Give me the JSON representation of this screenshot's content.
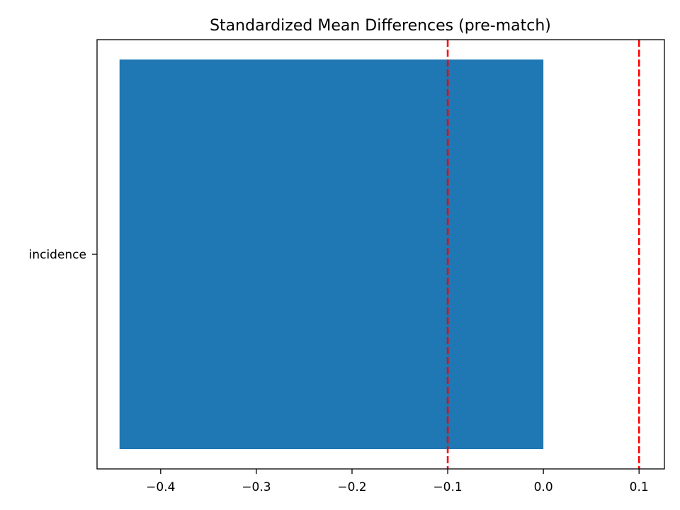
{
  "chart_data": {
    "type": "bar",
    "orientation": "horizontal",
    "title": "Standardized Mean Differences (pre-match)",
    "xlabel": "",
    "ylabel": "",
    "categories": [
      "incidence"
    ],
    "values": [
      -0.443
    ],
    "xlim": [
      -0.4665,
      0.1265
    ],
    "xticks": [
      -0.4,
      -0.3,
      -0.2,
      -0.1,
      0.0,
      0.1
    ],
    "xtick_labels": [
      "−0.4",
      "−0.3",
      "−0.2",
      "−0.1",
      "0.0",
      "0.1"
    ],
    "reference_lines": [
      {
        "x": -0.1,
        "style": "dashed",
        "color": "#ff0000"
      },
      {
        "x": 0.1,
        "style": "dashed",
        "color": "#ff0000"
      }
    ],
    "bar_color": "#1f77b4",
    "grid": false,
    "legend": "none"
  }
}
